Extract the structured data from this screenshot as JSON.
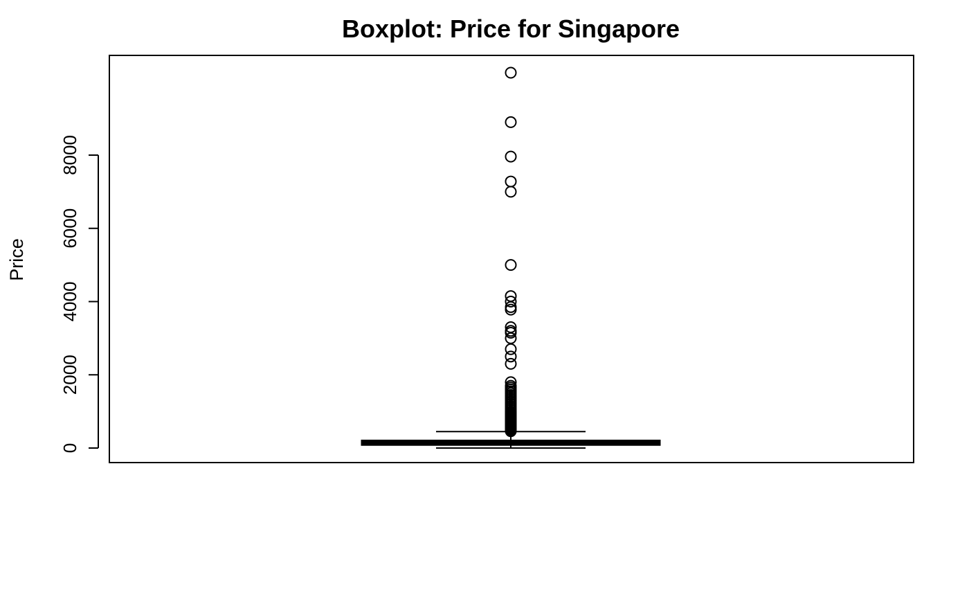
{
  "chart_data": {
    "type": "boxplot",
    "title": "Boxplot: Price for Singapore",
    "xlabel": "",
    "ylabel": "Price",
    "ylim": [
      -400,
      10700
    ],
    "yticks": [
      0,
      2000,
      4000,
      6000,
      8000
    ],
    "ytick_labels": [
      "0",
      "2000",
      "4000",
      "6000",
      "8000"
    ],
    "grid": false,
    "box": {
      "whisker_low": 0,
      "q1": 90,
      "median": 150,
      "q3": 200,
      "whisker_high": 450
    },
    "outliers": [
      10250,
      8900,
      7960,
      7280,
      7000,
      5000,
      4150,
      4000,
      3850,
      3780,
      3300,
      3200,
      3150,
      3000,
      2700,
      2500,
      2300,
      1800,
      1700,
      1650,
      1600,
      1550,
      1500,
      1450,
      1400,
      1350,
      1300,
      1250,
      1200,
      1150,
      1100,
      1050,
      1000,
      980,
      950,
      920,
      900,
      870,
      850,
      820,
      800,
      780,
      760,
      740,
      720,
      700,
      680,
      660,
      640,
      620,
      600,
      580,
      560,
      540,
      520,
      500,
      480,
      460
    ],
    "colors": {
      "stroke": "#000000",
      "background": "#ffffff"
    }
  }
}
